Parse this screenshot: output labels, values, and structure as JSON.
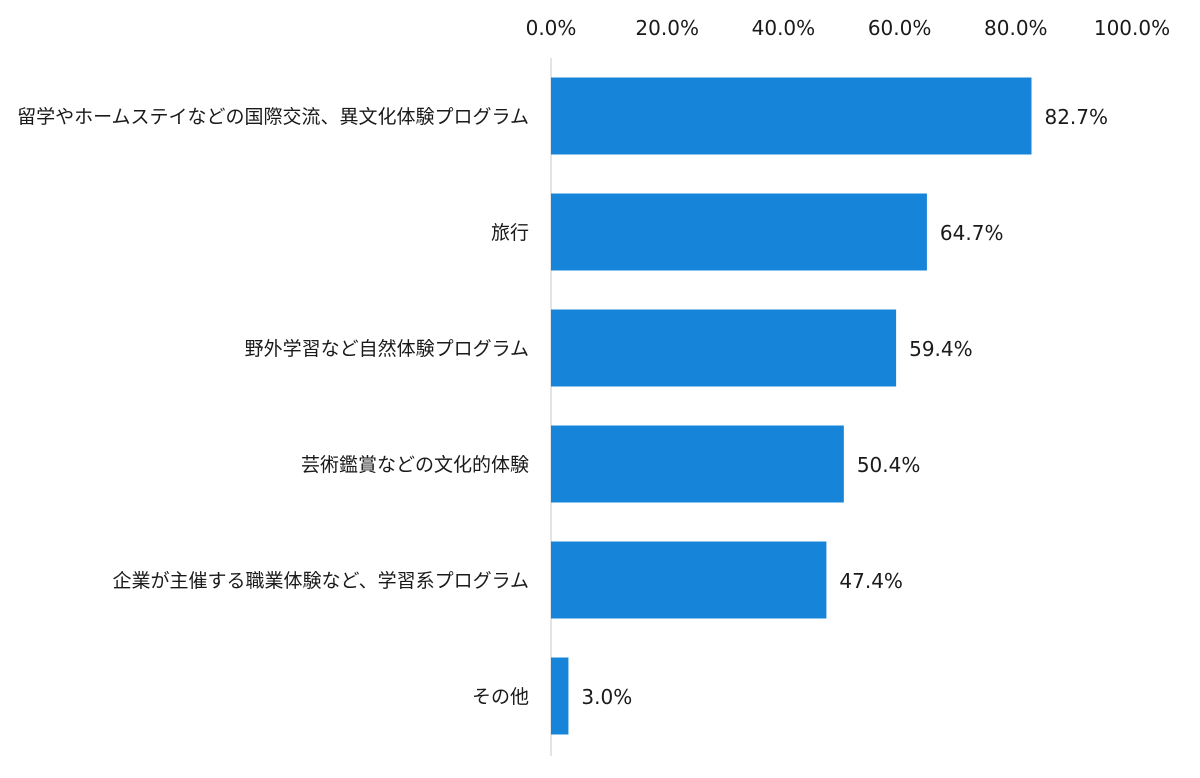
{
  "chart_data": {
    "type": "bar",
    "orientation": "horizontal",
    "categories": [
      "留学やホームステイなどの国際交流、異文化体験プログラム",
      "旅行",
      "野外学習など自然体験プログラム",
      "芸術鑑賞などの文化的体験",
      "企業が主催する職業体験など、学習系プログラム",
      "その他"
    ],
    "values": [
      82.7,
      64.7,
      59.4,
      50.4,
      47.4,
      3.0
    ],
    "data_labels": [
      "82.7%",
      "64.7%",
      "59.4%",
      "50.4%",
      "47.4%",
      "3.0%"
    ],
    "x_ticks": [
      0,
      20,
      40,
      60,
      80,
      100
    ],
    "x_tick_labels": [
      "0.0%",
      "20.0%",
      "40.0%",
      "60.0%",
      "80.0%",
      "100.0%"
    ],
    "xlim": [
      0,
      100
    ],
    "x_axis_position": "top",
    "grid": false,
    "legend": "none",
    "title": "",
    "xlabel": "",
    "ylabel": "",
    "bar_color": "#1584D9"
  }
}
